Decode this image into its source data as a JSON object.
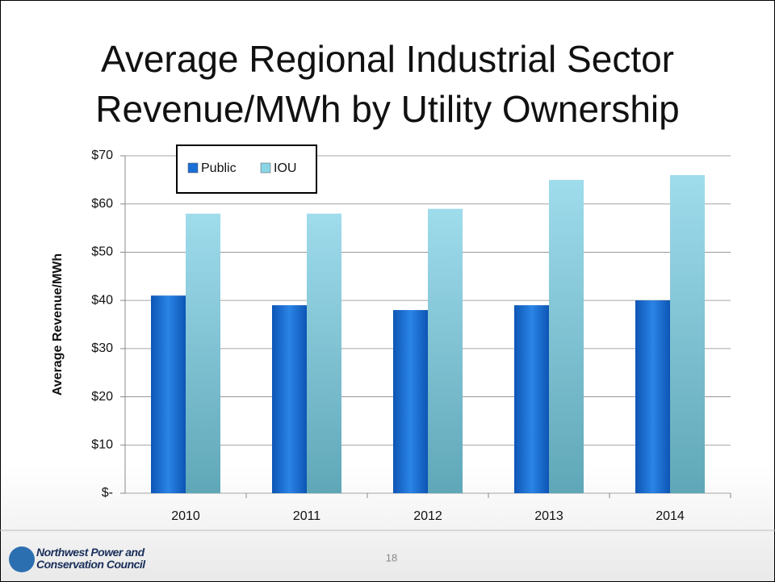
{
  "chart_data": {
    "type": "bar",
    "title": "Average Regional Industrial Sector Revenue/MWh by Utility Ownership",
    "y_label": "Average  Revenue/MWh",
    "categories": [
      "2010",
      "2011",
      "2012",
      "2013",
      "2014"
    ],
    "series": [
      {
        "name": "Public",
        "color": "#1a6fd6",
        "values": [
          41,
          39,
          38,
          39,
          40
        ]
      },
      {
        "name": "IOU",
        "color": "#8ad4e6",
        "values": [
          58,
          58,
          59,
          65,
          66
        ]
      }
    ],
    "ylim": [
      0,
      70
    ],
    "yticks": [
      {
        "value": 0,
        "label": "$-"
      },
      {
        "value": 10,
        "label": "$10"
      },
      {
        "value": 20,
        "label": "$20"
      },
      {
        "value": 30,
        "label": "$30"
      },
      {
        "value": 40,
        "label": "$40"
      },
      {
        "value": 50,
        "label": "$50"
      },
      {
        "value": 60,
        "label": "$60"
      },
      {
        "value": 70,
        "label": "$70"
      }
    ],
    "grid": true,
    "legend": "top-left"
  },
  "footer": {
    "org_lines": [
      "Northwest Power and",
      "Conservation Council"
    ],
    "page_number": "18"
  }
}
